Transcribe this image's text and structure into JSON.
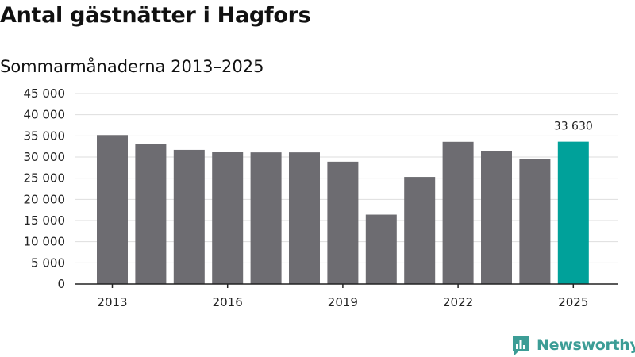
{
  "title": "Antal gästnätter i Hagfors",
  "subtitle": "Sommarmånaderna 2013–2025",
  "brand": {
    "name": "Newsworthy",
    "color": "#3c9d96",
    "icon": "newsworthy-chat-bars-icon"
  },
  "colors": {
    "bar": "#6d6c71",
    "highlight": "#00a19a",
    "grid": "#dedede",
    "axis": "#222222"
  },
  "chart_data": {
    "type": "bar",
    "x": [
      2013,
      2014,
      2015,
      2016,
      2017,
      2018,
      2019,
      2020,
      2021,
      2022,
      2023,
      2024,
      2025
    ],
    "values": [
      35200,
      33100,
      31700,
      31300,
      31100,
      31100,
      28900,
      16400,
      25300,
      33600,
      31500,
      29600,
      33630
    ],
    "ylim": [
      0,
      45000
    ],
    "yticks": [
      0,
      5000,
      10000,
      15000,
      20000,
      25000,
      30000,
      35000,
      40000,
      45000
    ],
    "ytick_labels": [
      "0",
      "5 000",
      "10 000",
      "15 000",
      "20 000",
      "25 000",
      "30 000",
      "35 000",
      "40 000",
      "45 000"
    ],
    "xticks": [
      2013,
      2016,
      2019,
      2022,
      2025
    ],
    "xtick_labels": [
      "2013",
      "2016",
      "2019",
      "2022",
      "2025"
    ],
    "highlight_index": 12,
    "data_labels": [
      {
        "index": 12,
        "text": "33 630"
      }
    ],
    "grid": true,
    "legend": "none",
    "xlabel": "",
    "ylabel": ""
  }
}
